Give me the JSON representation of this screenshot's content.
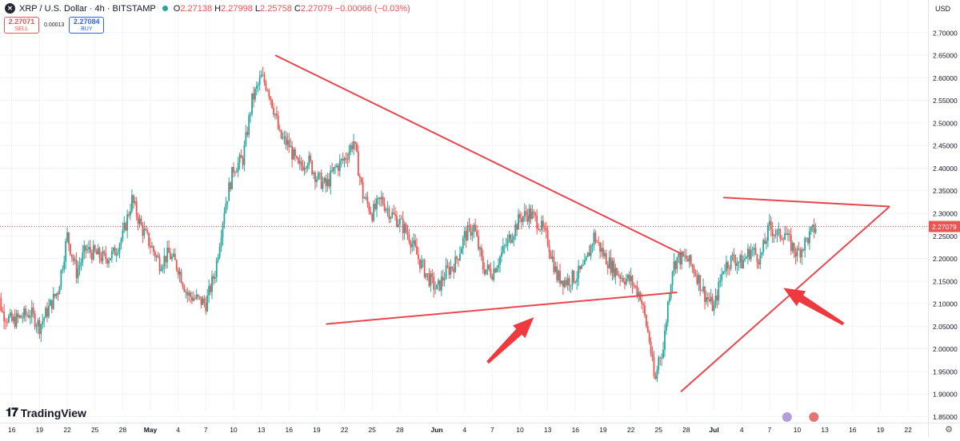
{
  "header": {
    "symbol": "XRP / U.S. Dollar · 4h · BITSTAMP",
    "ohlc": [
      {
        "k": "O",
        "v": "2.27138"
      },
      {
        "k": "H",
        "v": "2.27998"
      },
      {
        "k": "L",
        "v": "2.25758"
      },
      {
        "k": "C",
        "v": "2.27079 −0.00066 (−0.03%)"
      }
    ],
    "sell_price": "2.27071",
    "sell_label": "SELL",
    "spread": "0.00013",
    "buy_price": "2.27084",
    "buy_label": "BUY"
  },
  "currency": "USD",
  "logo": "TradingView",
  "colors": {
    "up": "#26a69a",
    "down": "#ef5350",
    "trendline": "#e8474f",
    "last_price": "#ef5350"
  },
  "chart_data": {
    "type": "candlestick",
    "title": "XRP / U.S. Dollar · 4h · BITSTAMP",
    "timeframe": "4h",
    "y_range": [
      1.85,
      2.72
    ],
    "y_ticks": [
      "1.85000",
      "1.90000",
      "1.95000",
      "2.00000",
      "2.05000",
      "2.10000",
      "2.15000",
      "2.20000",
      "2.25000",
      "2.30000",
      "2.35000",
      "2.40000",
      "2.45000",
      "2.50000",
      "2.55000",
      "2.60000",
      "2.65000",
      "2.70000"
    ],
    "x_ticks": [
      "16",
      "19",
      "22",
      "25",
      "28",
      "May",
      "4",
      "7",
      "10",
      "13",
      "16",
      "19",
      "22",
      "25",
      "28",
      "Jun",
      "4",
      "7",
      "10",
      "13",
      "16",
      "19",
      "22",
      "25",
      "28",
      "Jul",
      "4",
      "7",
      "10",
      "13",
      "16",
      "19",
      "22"
    ],
    "x_tick_days": [
      -15,
      -12,
      -9,
      -6,
      -3,
      0,
      3,
      6,
      9,
      12,
      15,
      18,
      21,
      24,
      27,
      31,
      34,
      37,
      40,
      43,
      46,
      49,
      52,
      55,
      58,
      61,
      64,
      67,
      70,
      73,
      76,
      79,
      82
    ],
    "last_price": 2.27079,
    "last_price_label": "2.27079",
    "close_path": [
      [
        -17,
        2.16
      ],
      [
        -16,
        2.08
      ],
      [
        -15,
        2.06
      ],
      [
        -14,
        2.07
      ],
      [
        -13,
        2.08
      ],
      [
        -12,
        2.05
      ],
      [
        -11,
        2.09
      ],
      [
        -10,
        2.13
      ],
      [
        -9,
        2.25
      ],
      [
        -8,
        2.17
      ],
      [
        -7,
        2.22
      ],
      [
        -6,
        2.21
      ],
      [
        -5,
        2.2
      ],
      [
        -4,
        2.21
      ],
      [
        -3,
        2.25
      ],
      [
        -2,
        2.33
      ],
      [
        -1,
        2.27
      ],
      [
        0,
        2.23
      ],
      [
        1,
        2.19
      ],
      [
        2,
        2.21
      ],
      [
        3,
        2.18
      ],
      [
        4,
        2.12
      ],
      [
        5,
        2.11
      ],
      [
        6,
        2.1
      ],
      [
        7,
        2.17
      ],
      [
        8,
        2.31
      ],
      [
        9,
        2.4
      ],
      [
        10,
        2.42
      ],
      [
        11,
        2.55
      ],
      [
        12,
        2.6
      ],
      [
        12.7,
        2.58
      ],
      [
        13.5,
        2.52
      ],
      [
        14,
        2.47
      ],
      [
        15,
        2.45
      ],
      [
        16,
        2.4
      ],
      [
        17,
        2.42
      ],
      [
        18,
        2.38
      ],
      [
        19,
        2.36
      ],
      [
        20,
        2.4
      ],
      [
        21,
        2.42
      ],
      [
        22,
        2.46
      ],
      [
        23,
        2.34
      ],
      [
        24,
        2.3
      ],
      [
        25,
        2.33
      ],
      [
        26,
        2.3
      ],
      [
        27,
        2.28
      ],
      [
        28,
        2.25
      ],
      [
        29,
        2.2
      ],
      [
        30,
        2.16
      ],
      [
        31,
        2.13
      ],
      [
        32,
        2.17
      ],
      [
        33,
        2.19
      ],
      [
        34,
        2.25
      ],
      [
        35,
        2.27
      ],
      [
        36,
        2.18
      ],
      [
        37,
        2.17
      ],
      [
        38,
        2.21
      ],
      [
        39,
        2.25
      ],
      [
        40,
        2.29
      ],
      [
        41,
        2.3
      ],
      [
        42,
        2.28
      ],
      [
        43,
        2.24
      ],
      [
        44,
        2.16
      ],
      [
        45,
        2.15
      ],
      [
        46,
        2.16
      ],
      [
        47,
        2.18
      ],
      [
        48,
        2.25
      ],
      [
        49,
        2.21
      ],
      [
        50,
        2.18
      ],
      [
        51,
        2.16
      ],
      [
        52,
        2.15
      ],
      [
        53,
        2.12
      ],
      [
        54,
        2.02
      ],
      [
        54.6,
        1.92
      ],
      [
        55,
        1.98
      ],
      [
        55.5,
        2.0
      ],
      [
        56,
        2.1
      ],
      [
        56.5,
        2.18
      ],
      [
        57,
        2.2
      ],
      [
        58,
        2.2
      ],
      [
        59,
        2.17
      ],
      [
        60,
        2.12
      ],
      [
        61,
        2.09
      ],
      [
        62,
        2.18
      ],
      [
        63,
        2.2
      ],
      [
        64,
        2.19
      ],
      [
        65,
        2.22
      ],
      [
        66,
        2.2
      ],
      [
        67,
        2.27
      ],
      [
        68,
        2.25
      ],
      [
        68.7,
        2.26
      ],
      [
        69,
        2.24
      ],
      [
        70,
        2.21
      ],
      [
        71,
        2.24
      ],
      [
        72,
        2.27
      ]
    ],
    "trendlines": [
      {
        "from": [
          13.5,
          2.65
        ],
        "to": [
          57.5,
          2.21
        ]
      },
      {
        "from": [
          19,
          2.055
        ],
        "to": [
          57,
          2.125
        ]
      },
      {
        "from": [
          62,
          2.335
        ],
        "to": [
          80,
          2.315
        ]
      },
      {
        "from": [
          57.4,
          1.905
        ],
        "to": [
          80,
          2.315
        ]
      }
    ],
    "arrows": [
      {
        "tail": [
          36.5,
          1.97
        ],
        "head": [
          41.5,
          2.07
        ]
      },
      {
        "tail": [
          75,
          2.055
        ],
        "head": [
          68.5,
          2.135
        ]
      }
    ]
  }
}
